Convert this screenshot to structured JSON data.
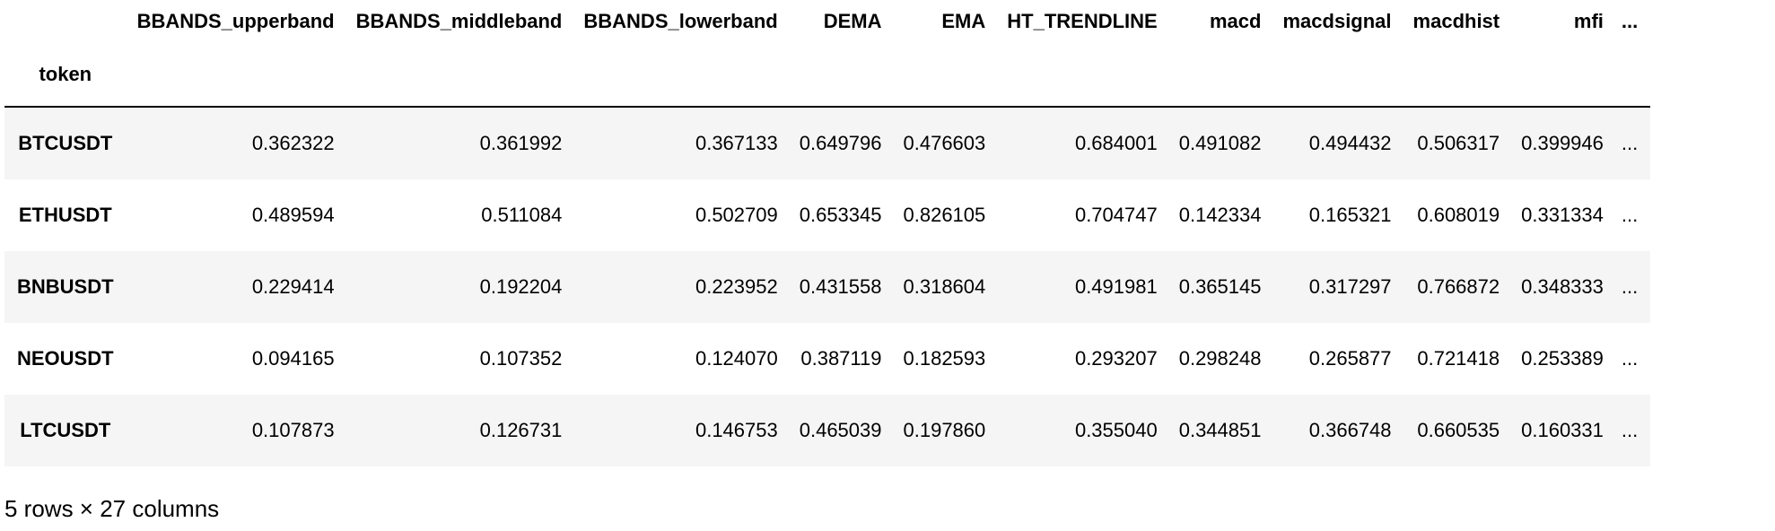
{
  "table": {
    "columns": [
      "BBANDS_upperband",
      "BBANDS_middleband",
      "BBANDS_lowerband",
      "DEMA",
      "EMA",
      "HT_TRENDLINE",
      "macd",
      "macdsignal",
      "macdhist",
      "mfi"
    ],
    "ellipsis": "...",
    "index_name": "token",
    "rows": [
      {
        "index": "BTCUSDT",
        "values": [
          "0.362322",
          "0.361992",
          "0.367133",
          "0.649796",
          "0.476603",
          "0.684001",
          "0.491082",
          "0.494432",
          "0.506317",
          "0.399946"
        ]
      },
      {
        "index": "ETHUSDT",
        "values": [
          "0.489594",
          "0.511084",
          "0.502709",
          "0.653345",
          "0.826105",
          "0.704747",
          "0.142334",
          "0.165321",
          "0.608019",
          "0.331334"
        ]
      },
      {
        "index": "BNBUSDT",
        "values": [
          "0.229414",
          "0.192204",
          "0.223952",
          "0.431558",
          "0.318604",
          "0.491981",
          "0.365145",
          "0.317297",
          "0.766872",
          "0.348333"
        ]
      },
      {
        "index": "NEOUSDT",
        "values": [
          "0.094165",
          "0.107352",
          "0.124070",
          "0.387119",
          "0.182593",
          "0.293207",
          "0.298248",
          "0.265877",
          "0.721418",
          "0.253389"
        ]
      },
      {
        "index": "LTCUSDT",
        "values": [
          "0.107873",
          "0.126731",
          "0.146753",
          "0.465039",
          "0.197860",
          "0.355040",
          "0.344851",
          "0.366748",
          "0.660535",
          "0.160331"
        ]
      }
    ]
  },
  "summary": "5 rows × 27 columns"
}
